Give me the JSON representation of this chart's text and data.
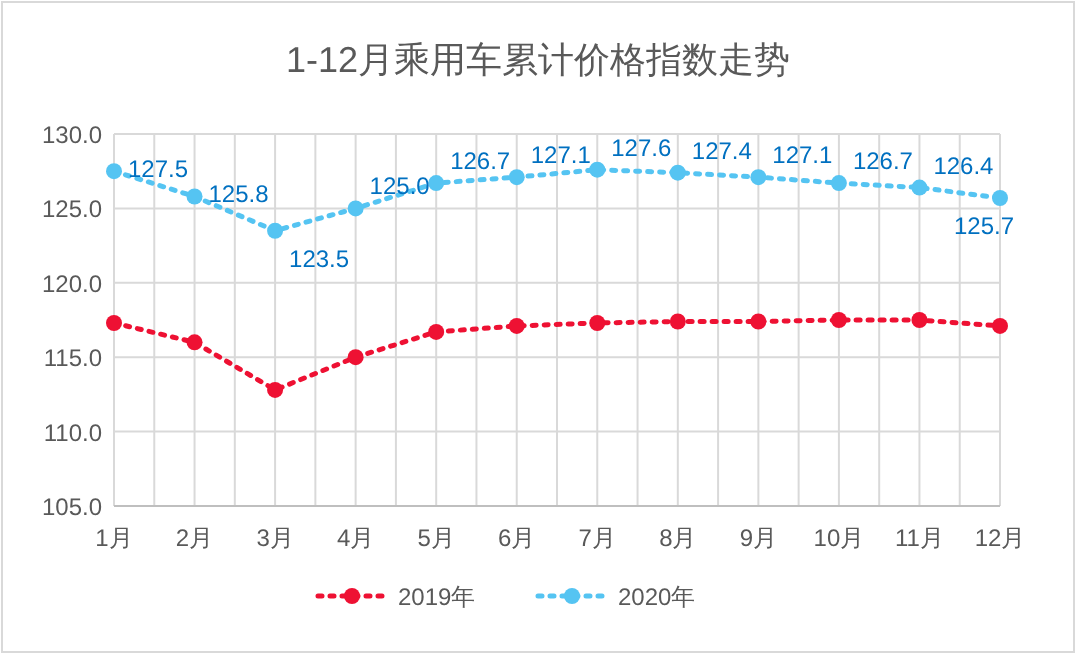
{
  "chart_data": {
    "type": "line",
    "title": "1-12月乘用车累计价格指数走势",
    "categories": [
      "1月",
      "2月",
      "3月",
      "4月",
      "5月",
      "6月",
      "7月",
      "8月",
      "9月",
      "10月",
      "11月",
      "12月"
    ],
    "series": [
      {
        "name": "2019年",
        "color": "#ee1133",
        "values": [
          117.3,
          116.0,
          112.8,
          115.0,
          116.7,
          117.1,
          117.3,
          117.4,
          117.4,
          117.5,
          117.5,
          117.1
        ]
      },
      {
        "name": "2020年",
        "color": "#55c4f2",
        "values": [
          127.5,
          125.8,
          123.5,
          125.0,
          126.7,
          127.1,
          127.6,
          127.4,
          127.1,
          126.7,
          126.4,
          125.7
        ],
        "value_labels": [
          "127.5",
          "125.8",
          "123.5",
          "125.0",
          "126.7",
          "127.1",
          "127.6",
          "127.4",
          "127.1",
          "126.7",
          "126.4",
          "125.7"
        ]
      }
    ],
    "ylim": [
      105,
      130
    ],
    "yticks": [
      {
        "value": 105,
        "label": "105.0"
      },
      {
        "value": 110,
        "label": "110.0"
      },
      {
        "value": 115,
        "label": "115.0"
      },
      {
        "value": 120,
        "label": "120.0"
      },
      {
        "value": 125,
        "label": "125.0"
      },
      {
        "value": 130,
        "label": "130.0"
      }
    ],
    "grid": true,
    "legend": "bottom",
    "marker": "circle",
    "line_style": "dotted"
  }
}
